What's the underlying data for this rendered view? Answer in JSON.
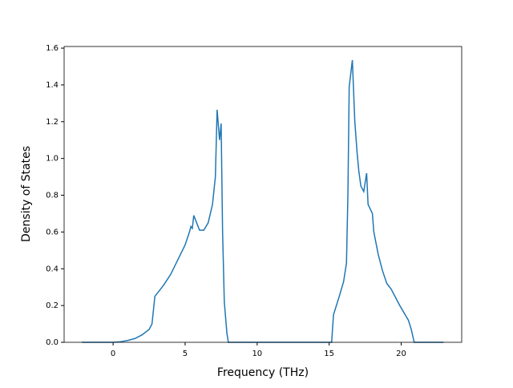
{
  "chart_data": {
    "type": "line",
    "x_label": "Frequency (THz)",
    "y_label": "Density of States",
    "xlim": [
      -3.4,
      24.2
    ],
    "ylim": [
      0,
      1.609
    ],
    "xticks": [
      0,
      5,
      10,
      15,
      20
    ],
    "yticks": [
      {
        "value": 0,
        "label": "0.0"
      },
      {
        "value": 0.2,
        "label": "0.2"
      },
      {
        "value": 0.4,
        "label": "0.4"
      },
      {
        "value": 0.6,
        "label": "0.6"
      },
      {
        "value": 0.8,
        "label": "0.8"
      },
      {
        "value": 1.0,
        "label": "1.0"
      },
      {
        "value": 1.2,
        "label": "1.2"
      },
      {
        "value": 1.4,
        "label": "1.4"
      },
      {
        "value": 1.6,
        "label": "1.6"
      }
    ],
    "x": [
      -2.17,
      0,
      0.5,
      1,
      1.5,
      2,
      2.5,
      2.7,
      2.9,
      3.1,
      3.5,
      4,
      4.5,
      5,
      5.3,
      5.4,
      5.5,
      5.6,
      5.8,
      6,
      6.3,
      6.6,
      6.9,
      7.1,
      7.22,
      7.39,
      7.5,
      7.6,
      7.72,
      7.9,
      8.0,
      15.17,
      15.3,
      15.7,
      16.0,
      16.2,
      16.3,
      16.39,
      16.61,
      16.78,
      16.94,
      17.06,
      17.2,
      17.4,
      17.6,
      17.7,
      18.0,
      18.1,
      18.4,
      18.7,
      19.0,
      19.3,
      19.9,
      20.5,
      20.7,
      20.9,
      22.94
    ],
    "series": [
      {
        "color": "#1f77b4",
        "values": [
          0,
          0,
          0.003,
          0.01,
          0.02,
          0.04,
          0.07,
          0.1,
          0.25,
          0.27,
          0.31,
          0.37,
          0.45,
          0.53,
          0.6,
          0.63,
          0.62,
          0.69,
          0.65,
          0.61,
          0.61,
          0.65,
          0.75,
          0.9,
          1.265,
          1.1,
          1.19,
          0.6,
          0.22,
          0.05,
          0,
          0,
          0.15,
          0.25,
          0.33,
          0.43,
          0.8,
          1.39,
          1.535,
          1.2,
          1.03,
          0.93,
          0.85,
          0.82,
          0.92,
          0.75,
          0.7,
          0.6,
          0.48,
          0.39,
          0.32,
          0.29,
          0.2,
          0.12,
          0.07,
          0,
          0
        ]
      }
    ]
  }
}
